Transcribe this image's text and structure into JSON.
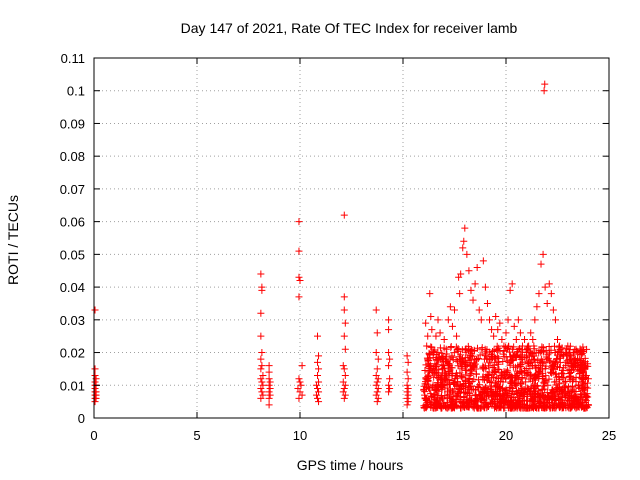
{
  "chart_data": {
    "type": "scatter",
    "title": "Day 147 of 2021, Rate Of TEC Index for receiver lamb",
    "xlabel": "GPS time / hours",
    "ylabel": "ROTI / TECUs",
    "xlim": [
      0,
      25
    ],
    "ylim": [
      0,
      0.11
    ],
    "xticks": [
      "0",
      "5",
      "10",
      "15",
      "20",
      "25"
    ],
    "yticks": [
      "0",
      "0.01",
      "0.02",
      "0.03",
      "0.04",
      "0.05",
      "0.06",
      "0.07",
      "0.08",
      "0.09",
      "0.1",
      "0.11"
    ],
    "grid": true,
    "marker": "plus",
    "color": "#ff0000",
    "series": [
      {
        "points": [
          [
            0.05,
            0.033
          ],
          [
            0.05,
            0.015
          ],
          [
            0.05,
            0.013
          ],
          [
            0.05,
            0.011
          ],
          [
            0.05,
            0.01
          ],
          [
            0.05,
            0.009
          ],
          [
            0.05,
            0.008
          ],
          [
            0.05,
            0.007
          ],
          [
            0.05,
            0.006
          ],
          [
            0.05,
            0.005
          ],
          [
            0.1,
            0.012
          ],
          [
            0.1,
            0.01
          ],
          [
            0.1,
            0.008
          ],
          [
            0.1,
            0.007
          ],
          [
            0.1,
            0.006
          ],
          [
            8.1,
            0.044
          ],
          [
            8.15,
            0.04
          ],
          [
            8.15,
            0.039
          ],
          [
            8.1,
            0.032
          ],
          [
            8.1,
            0.025
          ],
          [
            8.15,
            0.02
          ],
          [
            8.1,
            0.018
          ],
          [
            8.15,
            0.016
          ],
          [
            8.1,
            0.015
          ],
          [
            8.2,
            0.013
          ],
          [
            8.1,
            0.012
          ],
          [
            8.15,
            0.011
          ],
          [
            8.2,
            0.01
          ],
          [
            8.1,
            0.009
          ],
          [
            8.15,
            0.008
          ],
          [
            8.2,
            0.007
          ],
          [
            8.1,
            0.006
          ],
          [
            8.5,
            0.016
          ],
          [
            8.5,
            0.014
          ],
          [
            8.5,
            0.012
          ],
          [
            8.55,
            0.011
          ],
          [
            8.5,
            0.01
          ],
          [
            8.55,
            0.009
          ],
          [
            8.5,
            0.008
          ],
          [
            8.55,
            0.007
          ],
          [
            8.5,
            0.006
          ],
          [
            8.5,
            0.004
          ],
          [
            9.95,
            0.06
          ],
          [
            9.95,
            0.051
          ],
          [
            9.95,
            0.043
          ],
          [
            10.0,
            0.042
          ],
          [
            9.95,
            0.037
          ],
          [
            10.1,
            0.016
          ],
          [
            9.95,
            0.012
          ],
          [
            10.0,
            0.011
          ],
          [
            10.05,
            0.01
          ],
          [
            9.9,
            0.009
          ],
          [
            10.0,
            0.008
          ],
          [
            10.1,
            0.007
          ],
          [
            9.95,
            0.006
          ],
          [
            10.85,
            0.025
          ],
          [
            10.9,
            0.019
          ],
          [
            10.85,
            0.017
          ],
          [
            10.9,
            0.015
          ],
          [
            10.85,
            0.013
          ],
          [
            10.9,
            0.011
          ],
          [
            10.8,
            0.01
          ],
          [
            10.85,
            0.009
          ],
          [
            10.9,
            0.008
          ],
          [
            10.8,
            0.007
          ],
          [
            10.85,
            0.006
          ],
          [
            10.9,
            0.005
          ],
          [
            12.15,
            0.062
          ],
          [
            12.15,
            0.037
          ],
          [
            12.15,
            0.033
          ],
          [
            12.2,
            0.029
          ],
          [
            12.15,
            0.025
          ],
          [
            12.2,
            0.021
          ],
          [
            12.1,
            0.016
          ],
          [
            12.15,
            0.015
          ],
          [
            12.2,
            0.013
          ],
          [
            12.1,
            0.011
          ],
          [
            12.2,
            0.01
          ],
          [
            12.15,
            0.009
          ],
          [
            12.1,
            0.008
          ],
          [
            12.2,
            0.007
          ],
          [
            12.15,
            0.006
          ],
          [
            13.7,
            0.033
          ],
          [
            13.75,
            0.026
          ],
          [
            13.7,
            0.02
          ],
          [
            13.8,
            0.018
          ],
          [
            13.75,
            0.015
          ],
          [
            13.7,
            0.013
          ],
          [
            13.8,
            0.012
          ],
          [
            13.75,
            0.011
          ],
          [
            13.7,
            0.01
          ],
          [
            13.8,
            0.009
          ],
          [
            13.75,
            0.008
          ],
          [
            13.7,
            0.007
          ],
          [
            13.8,
            0.006
          ],
          [
            13.75,
            0.005
          ],
          [
            14.3,
            0.03
          ],
          [
            14.3,
            0.027
          ],
          [
            14.3,
            0.02
          ],
          [
            14.35,
            0.018
          ],
          [
            14.3,
            0.016
          ],
          [
            14.35,
            0.012
          ],
          [
            14.3,
            0.01
          ],
          [
            14.35,
            0.009
          ],
          [
            14.3,
            0.008
          ],
          [
            15.2,
            0.019
          ],
          [
            15.25,
            0.017
          ],
          [
            15.2,
            0.014
          ],
          [
            15.25,
            0.012
          ],
          [
            15.2,
            0.01
          ],
          [
            15.25,
            0.009
          ],
          [
            15.2,
            0.008
          ],
          [
            15.25,
            0.007
          ],
          [
            15.2,
            0.006
          ],
          [
            15.25,
            0.005
          ],
          [
            15.2,
            0.004
          ],
          [
            16.1,
            0.029
          ],
          [
            16.2,
            0.025
          ],
          [
            16.15,
            0.022
          ],
          [
            16.3,
            0.038
          ],
          [
            16.35,
            0.031
          ],
          [
            16.4,
            0.027
          ],
          [
            16.5,
            0.02
          ],
          [
            16.6,
            0.025
          ],
          [
            16.7,
            0.03
          ],
          [
            16.8,
            0.026
          ],
          [
            16.9,
            0.018
          ],
          [
            17.0,
            0.024
          ],
          [
            17.1,
            0.021
          ],
          [
            17.2,
            0.03
          ],
          [
            17.3,
            0.034
          ],
          [
            17.4,
            0.028
          ],
          [
            17.5,
            0.033
          ],
          [
            17.6,
            0.025
          ],
          [
            17.7,
            0.043
          ],
          [
            17.75,
            0.038
          ],
          [
            17.8,
            0.044
          ],
          [
            17.9,
            0.052
          ],
          [
            17.95,
            0.054
          ],
          [
            18.0,
            0.058
          ],
          [
            18.1,
            0.05
          ],
          [
            18.2,
            0.045
          ],
          [
            18.3,
            0.039
          ],
          [
            18.4,
            0.036
          ],
          [
            18.5,
            0.041
          ],
          [
            18.6,
            0.046
          ],
          [
            18.7,
            0.033
          ],
          [
            18.8,
            0.03
          ],
          [
            18.9,
            0.048
          ],
          [
            19.0,
            0.04
          ],
          [
            19.1,
            0.035
          ],
          [
            19.2,
            0.03
          ],
          [
            19.3,
            0.027
          ],
          [
            19.4,
            0.025
          ],
          [
            19.5,
            0.031
          ],
          [
            19.6,
            0.027
          ],
          [
            19.7,
            0.029
          ],
          [
            19.8,
            0.024
          ],
          [
            19.9,
            0.022
          ],
          [
            20.0,
            0.026
          ],
          [
            20.1,
            0.03
          ],
          [
            20.2,
            0.039
          ],
          [
            20.3,
            0.041
          ],
          [
            20.4,
            0.028
          ],
          [
            20.5,
            0.024
          ],
          [
            20.6,
            0.03
          ],
          [
            20.7,
            0.026
          ],
          [
            20.8,
            0.022
          ],
          [
            20.9,
            0.024
          ],
          [
            21.0,
            0.02
          ],
          [
            21.1,
            0.022
          ],
          [
            21.2,
            0.026
          ],
          [
            21.3,
            0.024
          ],
          [
            21.4,
            0.03
          ],
          [
            21.5,
            0.034
          ],
          [
            21.6,
            0.038
          ],
          [
            21.7,
            0.047
          ],
          [
            21.8,
            0.05
          ],
          [
            21.85,
            0.1
          ],
          [
            21.88,
            0.102
          ],
          [
            21.9,
            0.04
          ],
          [
            22.0,
            0.035
          ],
          [
            22.1,
            0.041
          ],
          [
            22.2,
            0.038
          ],
          [
            22.3,
            0.033
          ],
          [
            22.4,
            0.03
          ],
          [
            22.5,
            0.024
          ],
          [
            22.6,
            0.022
          ],
          [
            22.7,
            0.02
          ],
          [
            22.8,
            0.019
          ],
          [
            22.9,
            0.016
          ],
          [
            23.0,
            0.022
          ],
          [
            23.1,
            0.02
          ],
          [
            23.2,
            0.018
          ],
          [
            23.3,
            0.016
          ],
          [
            23.4,
            0.021
          ],
          [
            23.5,
            0.017
          ],
          [
            23.6,
            0.016
          ],
          [
            23.7,
            0.014
          ],
          [
            23.8,
            0.015
          ],
          [
            23.9,
            0.013
          ],
          [
            24.0,
            0.012
          ]
        ]
      }
    ],
    "band": {
      "x_start": 16.0,
      "x_end": 24.0,
      "y_min": 0.003,
      "y_max": 0.022
    }
  }
}
